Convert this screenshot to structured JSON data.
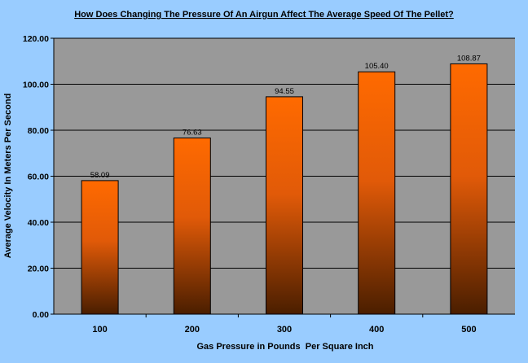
{
  "colors": {
    "page_background": "#99ccff",
    "plot_background": "#999999",
    "bar_top": "#ff6600",
    "bar_bottom": "#4a1e00",
    "gridline": "#000000"
  },
  "chart_data": {
    "type": "bar",
    "title": "How Does Changing The Pressure Of An Airgun Affect The Average Speed Of The Pellet?",
    "xlabel": "Gas Pressure in Pounds  Per Square Inch",
    "ylabel": "Average Velocity In Meters Per Second",
    "categories": [
      "100",
      "200",
      "300",
      "400",
      "500"
    ],
    "values": [
      58.09,
      76.63,
      94.55,
      105.4,
      108.87
    ],
    "data_labels": [
      "58.09",
      "76.63",
      "94.55",
      "105.40",
      "108.87"
    ],
    "ylim": [
      0,
      120
    ],
    "yticks": [
      0,
      20,
      40,
      60,
      80,
      100,
      120
    ],
    "ytick_labels": [
      "0.00",
      "20.00",
      "40.00",
      "60.00",
      "80.00",
      "100.00",
      "120.00"
    ],
    "grid": true,
    "legend": "none"
  }
}
